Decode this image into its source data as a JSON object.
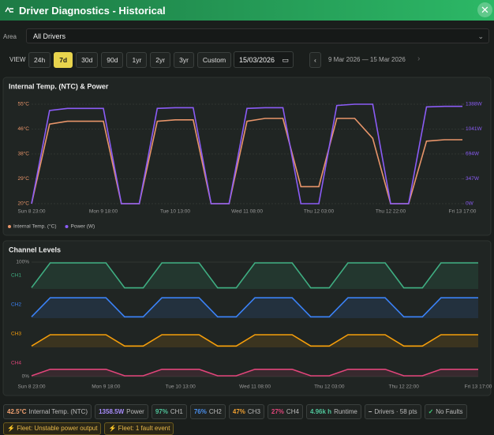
{
  "header": {
    "title": "Driver Diagnostics - Historical"
  },
  "area": {
    "label": "Area",
    "value": "All Drivers"
  },
  "view": {
    "label": "VIEW",
    "options": [
      "24h",
      "7d",
      "30d",
      "90d",
      "1yr",
      "2yr",
      "3yr",
      "Custom"
    ],
    "active": 1,
    "date": "15/03/2026",
    "range": "9 Mar 2026 — 15 Mar 2026"
  },
  "chart_data": [
    {
      "type": "line",
      "title": "Internal Temp. (NTC) & Power",
      "categories": [
        "Sun 8 23:00",
        null,
        null,
        null,
        "Mon 9 18:00",
        null,
        null,
        null,
        "Tue 10 13:00",
        null,
        null,
        null,
        "Wed 11 08:00",
        null,
        null,
        null,
        "Thu 12 03:00",
        null,
        null,
        null,
        "Thu 12 22:00",
        null,
        null,
        null,
        "Fri 13 17:00"
      ],
      "series": [
        {
          "name": "Internal Temp. (°C)",
          "color": "#e8956a",
          "values": [
            20,
            48,
            49,
            49,
            49,
            20,
            20,
            49,
            49.5,
            49.5,
            20,
            20,
            49,
            50,
            50,
            26,
            26,
            50,
            50,
            43,
            20,
            20,
            42,
            42.5,
            42.5
          ]
        },
        {
          "name": "Power (W)",
          "color": "#8b5cf6",
          "axis": "y2",
          "values": [
            0,
            1300,
            1330,
            1330,
            1330,
            0,
            0,
            1330,
            1340,
            1340,
            0,
            0,
            1330,
            1340,
            1340,
            0,
            0,
            1370,
            1388,
            1388,
            0,
            0,
            1350,
            1358.5,
            1358.5
          ]
        }
      ],
      "ylim": [
        20,
        55
      ],
      "yticks": [
        {
          "value": 20,
          "label": "20°C"
        },
        {
          "value": 28.75,
          "label": "29°C"
        },
        {
          "value": 37.5,
          "label": "38°C"
        },
        {
          "value": 46.25,
          "label": "46°C"
        },
        {
          "value": 55,
          "label": "55°C"
        }
      ],
      "y2lim": [
        0,
        1388
      ],
      "y2ticks": [
        {
          "value": 0,
          "label": "0W"
        },
        {
          "value": 347,
          "label": "347W"
        },
        {
          "value": 694,
          "label": "694W"
        },
        {
          "value": 1041,
          "label": "1041W"
        },
        {
          "value": 1388,
          "label": "1388W"
        }
      ],
      "grid": true,
      "legend": "bottom-left"
    },
    {
      "type": "area",
      "title": "Channel Levels",
      "categories": [
        "Sun 8 23:00",
        null,
        null,
        null,
        "Mon 9 18:00",
        null,
        null,
        null,
        "Tue 10 13:00",
        null,
        null,
        null,
        "Wed 11 08:00",
        null,
        null,
        null,
        "Thu 12 03:00",
        null,
        null,
        null,
        "Thu 12 22:00",
        null,
        null,
        null,
        "Fri 13 17:00"
      ],
      "series": [
        {
          "name": "CH1",
          "color": "#3fae82",
          "values": [
            5,
            97,
            97,
            97,
            97,
            4,
            4,
            97,
            97,
            97,
            4,
            4,
            97,
            97,
            97,
            4,
            4,
            97,
            97,
            97,
            4,
            4,
            97,
            97,
            97
          ]
        },
        {
          "name": "CH2",
          "color": "#3b82f6",
          "values": [
            5,
            76,
            76,
            76,
            76,
            5,
            5,
            76,
            76,
            76,
            5,
            5,
            76,
            76,
            76,
            5,
            5,
            76,
            76,
            76,
            5,
            5,
            76,
            76,
            76
          ]
        },
        {
          "name": "CH3",
          "color": "#f59e0b",
          "values": [
            5,
            47,
            47,
            47,
            47,
            5,
            5,
            47,
            47,
            47,
            5,
            5,
            47,
            47,
            47,
            5,
            5,
            47,
            47,
            47,
            5,
            5,
            47,
            47,
            47
          ]
        },
        {
          "name": "CH4",
          "color": "#e0457a",
          "values": [
            3,
            27,
            27,
            27,
            27,
            3,
            3,
            27,
            27,
            27,
            3,
            3,
            27,
            27,
            27,
            3,
            3,
            27,
            27,
            27,
            3,
            3,
            27,
            27,
            27
          ]
        }
      ],
      "ylim": [
        0,
        100
      ],
      "yticks": [
        {
          "value": 0,
          "label": "0%"
        },
        {
          "value": 100,
          "label": "100%"
        }
      ],
      "grid": true
    }
  ],
  "stats": [
    {
      "value": "42.5°C",
      "label": "Internal Temp. (NTC)",
      "color": "#f0a070"
    },
    {
      "value": "1358.5W",
      "label": "Power",
      "color": "#a78bfa"
    },
    {
      "value": "97%",
      "label": "CH1",
      "color": "#4fc49a"
    },
    {
      "value": "76%",
      "label": "CH2",
      "color": "#4a90f0"
    },
    {
      "value": "47%",
      "label": "CH3",
      "color": "#f0a030"
    },
    {
      "value": "27%",
      "label": "CH4",
      "color": "#e0457a"
    },
    {
      "value": "4.96k h",
      "label": "Runtime",
      "color": "#4fc49a"
    },
    {
      "value": "–",
      "label": "Drivers · 58 pts",
      "color": "#dddddd"
    },
    {
      "value": "✓",
      "label": "No Faults",
      "color": "#3fcf7a"
    }
  ],
  "alerts": [
    "Fleet: Unstable power output",
    "Fleet: 1 fault event"
  ]
}
